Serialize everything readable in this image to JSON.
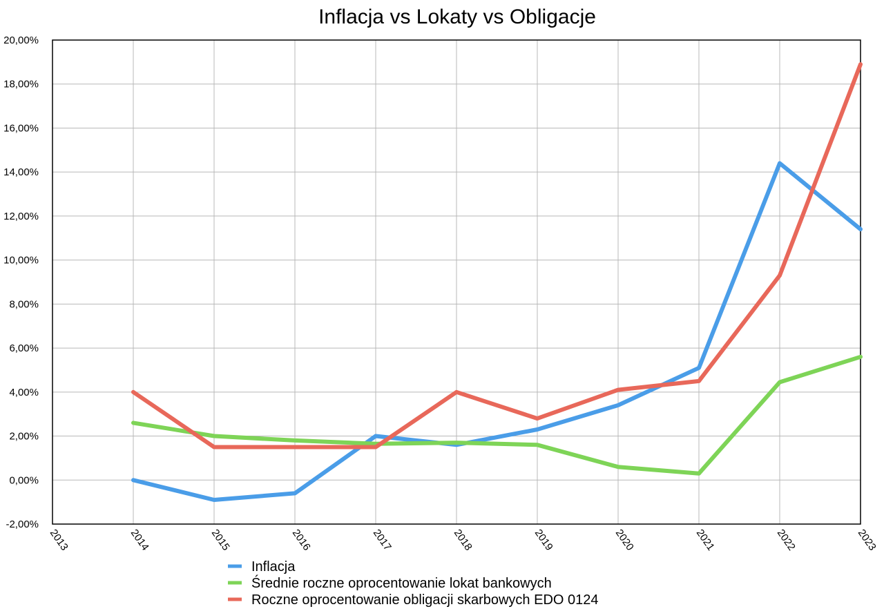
{
  "chart_data": {
    "type": "line",
    "title": "Inflacja vs Lokaty vs Obligacje",
    "xlabel": "",
    "ylabel": "",
    "x": [
      "2013",
      "2014",
      "2015",
      "2016",
      "2017",
      "2018",
      "2019",
      "2020",
      "2021",
      "2022",
      "2023"
    ],
    "ylim": [
      -2,
      20
    ],
    "yticks": [
      -2,
      0,
      2,
      4,
      6,
      8,
      10,
      12,
      14,
      16,
      18,
      20
    ],
    "ytick_labels": [
      "-2,00%",
      "0,00%",
      "2,00%",
      "4,00%",
      "6,00%",
      "8,00%",
      "10,00%",
      "12,00%",
      "14,00%",
      "16,00%",
      "18,00%",
      "20,00%"
    ],
    "grid": true,
    "legend_position": "bottom",
    "series": [
      {
        "name": "Inflacja",
        "color": "#4a9de8",
        "values": [
          null,
          0.0,
          -0.9,
          -0.6,
          2.0,
          1.6,
          2.3,
          3.4,
          5.1,
          14.4,
          11.4
        ]
      },
      {
        "name": "Średnie roczne oprocentowanie lokat bankowych",
        "color": "#7ed457",
        "values": [
          null,
          2.6,
          2.0,
          1.8,
          1.65,
          1.7,
          1.6,
          0.6,
          0.3,
          4.45,
          5.6
        ]
      },
      {
        "name": "Roczne oprocentowanie obligacji skarbowych EDO 0124",
        "color": "#e8685a",
        "values": [
          null,
          4.0,
          1.5,
          1.5,
          1.5,
          4.0,
          2.8,
          4.1,
          4.5,
          9.3,
          18.9
        ]
      }
    ]
  }
}
